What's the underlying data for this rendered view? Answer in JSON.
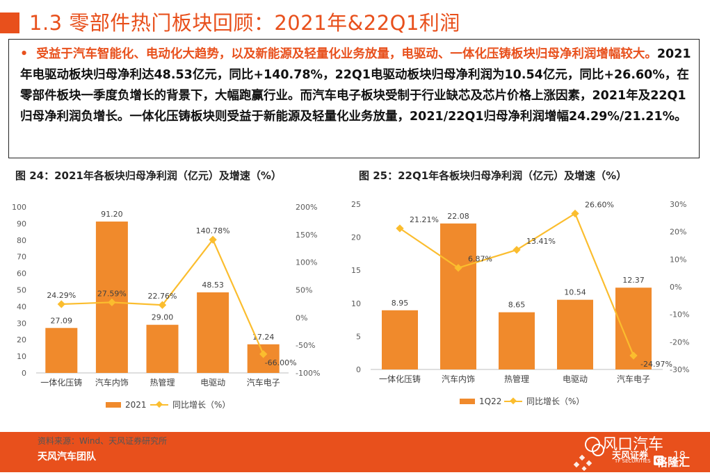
{
  "title": "1.3 零部件热门板块回顾：2021年&22Q1利润",
  "summary": {
    "bullet": "•",
    "lead": "受益于汽车智能化、电动化大趋势，以及新能源及轻量化业务放量，电驱动、一体化压铸板块归母净利润增幅较大。",
    "body": "2021年电驱动板块归母净利达48.53亿元，同比+140.78%，22Q1电驱动板块归母净利润为10.54亿元，同比+26.60%，在零部件板块一季度负增长的背景下，大幅跑赢行业。而汽车电子板块受制于行业缺芯及芯片价格上涨因素，2021年及22Q1归母净利润负增长。一体化压铸板块则受益于新能源及轻量化业务放量，2021/22Q1归母净利润增幅24.29%/21.21%。"
  },
  "colors": {
    "accent": "#e8501c",
    "bar": "#f08a2c",
    "line": "#fbbd2e"
  },
  "chart_data": [
    {
      "type": "bar",
      "figure_title": "图 24：2021年各板块归母净利润（亿元）及增速（%）",
      "categories": [
        "一体化压铸",
        "汽车内饰",
        "热管理",
        "电驱动",
        "汽车电子"
      ],
      "series": [
        {
          "name": "2021",
          "type": "bar",
          "axis": "left",
          "values": [
            27.09,
            91.2,
            29.0,
            48.53,
            17.24
          ],
          "labels": [
            "27.09",
            "91.20",
            "29.00",
            "48.53",
            "17.24"
          ]
        },
        {
          "name": "同比增长（%）",
          "type": "line",
          "axis": "right",
          "values": [
            24.29,
            27.59,
            22.76,
            140.78,
            -66.0
          ],
          "labels": [
            "24.29%",
            "27.59%",
            "22.76%",
            "140.78%",
            "-66.00%"
          ]
        }
      ],
      "ylim": [
        0,
        100
      ],
      "yticks": [
        "0",
        "10",
        "20",
        "30",
        "40",
        "50",
        "60",
        "70",
        "80",
        "90",
        "100"
      ],
      "y2lim": [
        -100,
        200
      ],
      "y2ticks": [
        "-100%",
        "-50%",
        "0%",
        "50%",
        "100%",
        "150%",
        "200%"
      ],
      "legend": "bottom"
    },
    {
      "type": "bar",
      "figure_title": "图 25：22Q1年各板块归母净利润（亿元）及增速（%）",
      "categories": [
        "一体化压铸",
        "汽车内饰",
        "热管理",
        "电驱动",
        "汽车电子"
      ],
      "series": [
        {
          "name": "1Q22",
          "type": "bar",
          "axis": "left",
          "values": [
            8.95,
            22.08,
            8.65,
            10.54,
            12.37
          ],
          "labels": [
            "8.95",
            "22.08",
            "8.65",
            "10.54",
            "12.37"
          ]
        },
        {
          "name": "同比增长（%）",
          "type": "line",
          "axis": "right",
          "values": [
            21.21,
            6.87,
            13.41,
            26.6,
            -24.97
          ],
          "labels": [
            "21.21%",
            "6.87%",
            "13.41%",
            "26.60%",
            "-24.97%"
          ]
        }
      ],
      "ylim": [
        0,
        25
      ],
      "yticks": [
        "0",
        "5",
        "10",
        "15",
        "20",
        "25"
      ],
      "y2lim": [
        -30,
        30
      ],
      "y2ticks": [
        "-30%",
        "-20%",
        "-10%",
        "0%",
        "10%",
        "20%",
        "30%"
      ],
      "legend": "bottom"
    }
  ],
  "footer": {
    "source": "资料来源：Wind、天风证券研究所",
    "team": "天风汽车团队",
    "page": "18",
    "brand_wechat": "风口汽车",
    "brand_cn": "天风证券",
    "brand_en": "TF SECURITIES",
    "brand_watermark": "格隆汇"
  }
}
